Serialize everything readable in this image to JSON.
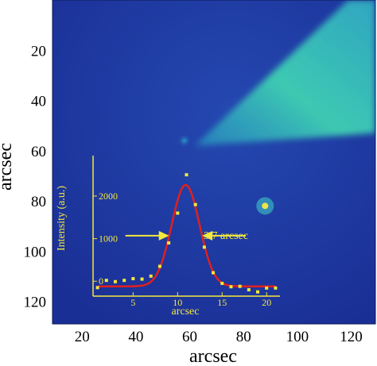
{
  "chart_data": [
    {
      "type": "heatmap",
      "xlabel": "arcsec",
      "ylabel": "arcsec",
      "xticks": [
        20,
        40,
        60,
        80,
        100,
        120
      ],
      "yticks": [
        20,
        40,
        60,
        80,
        100,
        120
      ],
      "xlim": [
        9,
        129
      ],
      "ylim": [
        129,
        0
      ],
      "colormap": [
        "#1a2f96",
        "#2146b0",
        "#27a2c8",
        "#49d9b0"
      ],
      "features": [
        {
          "kind": "fan",
          "value": "diffuse emission",
          "apex": [
            62,
            58
          ],
          "corner_top": [
            119,
            0
          ],
          "corner_far": [
            129,
            53
          ]
        },
        {
          "kind": "point",
          "value": "faint source",
          "x": 58,
          "y": 56
        },
        {
          "kind": "point",
          "value": "bright source",
          "x": 88,
          "y": 82
        }
      ]
    },
    {
      "type": "line",
      "xlabel": "arcsec",
      "ylabel": "Intensity (a.u.)",
      "xticks": [
        5,
        10,
        15,
        20
      ],
      "yticks": [
        0,
        1000,
        2000
      ],
      "xlim": [
        0.5,
        21.5
      ],
      "ylim": [
        -350,
        2950
      ],
      "series": [
        {
          "kind": "points",
          "x": [
            1,
            2,
            3,
            4,
            5,
            6,
            7,
            8,
            9,
            10,
            11,
            12,
            13,
            14,
            15,
            16,
            17,
            18,
            19,
            20,
            21
          ],
          "values": [
            -150,
            20,
            -10,
            20,
            60,
            50,
            120,
            350,
            900,
            1600,
            2500,
            1800,
            800,
            200,
            -50,
            -130,
            -120,
            -200,
            -250,
            -160,
            -160
          ]
        },
        {
          "kind": "fit",
          "gaussian": {
            "amplitude": 2380,
            "center": 10.9,
            "fwhm": 3.7,
            "offset": -120
          }
        }
      ],
      "annotation": {
        "text": "3.7 arcsec",
        "left_x": 9.05,
        "right_x": 12.75,
        "y": 1070
      }
    }
  ]
}
